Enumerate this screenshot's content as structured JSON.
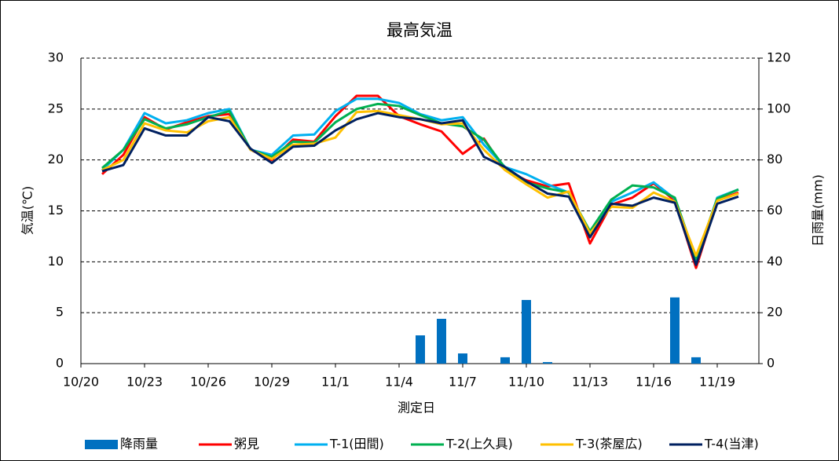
{
  "chart_data": {
    "type": "line",
    "title": "最高気温",
    "xlabel": "測定日",
    "ylabel": "気温(℃)",
    "y2label": "日雨量(mm)",
    "categories": [
      "10/20",
      null,
      null,
      "10/23",
      null,
      null,
      "10/26",
      null,
      null,
      "10/29",
      null,
      null,
      "11/1",
      null,
      null,
      "11/4",
      null,
      null,
      "11/7",
      null,
      null,
      "11/10",
      null,
      null,
      "11/13",
      null,
      null,
      "11/16",
      null,
      null,
      "11/19",
      null
    ],
    "ylim": [
      0,
      30
    ],
    "yticks": [
      0,
      5,
      10,
      15,
      20,
      25,
      30
    ],
    "y2lim": [
      0,
      120
    ],
    "y2ticks": [
      0,
      20,
      40,
      60,
      80,
      100,
      120
    ],
    "grid": true,
    "legend": "bottom",
    "series": [
      {
        "name": "降雨量",
        "type": "bar",
        "axis": "y2",
        "color": "#0070c0",
        "values": [
          null,
          0,
          0,
          0,
          0,
          0,
          0,
          0,
          0,
          0,
          0,
          0,
          0,
          0,
          0,
          0,
          11.1,
          17.6,
          4,
          0,
          2.5,
          25,
          0.6,
          0,
          0,
          0,
          0,
          0,
          26,
          2.5,
          0,
          0
        ]
      },
      {
        "name": "粥見",
        "color": "#ff0000",
        "values": [
          null,
          18.6,
          20.5,
          24.2,
          23.0,
          23.7,
          24.3,
          24.5,
          21.0,
          20.0,
          22.0,
          21.8,
          24.3,
          26.3,
          26.3,
          24.3,
          23.5,
          22.8,
          20.6,
          22.1,
          19.0,
          18.0,
          17.4,
          17.7,
          11.8,
          15.6,
          16.3,
          17.7,
          16.0,
          9.4,
          16.0,
          16.8
        ]
      },
      {
        "name": "T-1(田間)",
        "color": "#00b0f0",
        "values": [
          null,
          19.0,
          21.0,
          24.6,
          23.6,
          23.9,
          24.6,
          25.0,
          21.0,
          20.5,
          22.4,
          22.5,
          24.8,
          26.0,
          26.0,
          25.6,
          24.5,
          23.9,
          24.2,
          21.5,
          19.3,
          18.6,
          17.6,
          16.8,
          12.5,
          15.9,
          16.8,
          17.8,
          16.2,
          10.0,
          16.3,
          17.1
        ]
      },
      {
        "name": "T-2(上久具)",
        "color": "#00b050",
        "values": [
          null,
          19.2,
          21.0,
          24.0,
          23.1,
          23.5,
          24.2,
          24.8,
          21.0,
          20.3,
          21.8,
          21.7,
          23.7,
          25.0,
          25.5,
          25.3,
          24.4,
          23.6,
          23.3,
          22.0,
          19.2,
          17.8,
          17.2,
          16.8,
          13.0,
          16.1,
          17.5,
          17.3,
          16.3,
          10.3,
          16.2,
          17.1
        ]
      },
      {
        "name": "T-3(茶屋広)",
        "color": "#ffc000",
        "values": [
          null,
          19.0,
          20.0,
          23.6,
          22.9,
          22.7,
          23.8,
          24.2,
          21.0,
          20.1,
          21.5,
          21.6,
          22.2,
          24.7,
          24.8,
          24.4,
          24.0,
          23.5,
          23.6,
          21.0,
          19.0,
          17.6,
          16.3,
          16.9,
          12.8,
          15.4,
          15.3,
          16.8,
          15.9,
          10.6,
          16.0,
          16.7
        ]
      },
      {
        "name": "T-4(当津)",
        "color": "#002060",
        "values": [
          null,
          18.9,
          19.5,
          23.1,
          22.4,
          22.4,
          24.2,
          23.8,
          21.1,
          19.7,
          21.3,
          21.4,
          22.9,
          24.0,
          24.6,
          24.2,
          24.0,
          23.6,
          23.9,
          20.3,
          19.3,
          17.9,
          16.7,
          16.4,
          12.4,
          15.7,
          15.5,
          16.3,
          15.8,
          9.7,
          15.7,
          16.4
        ]
      }
    ]
  }
}
